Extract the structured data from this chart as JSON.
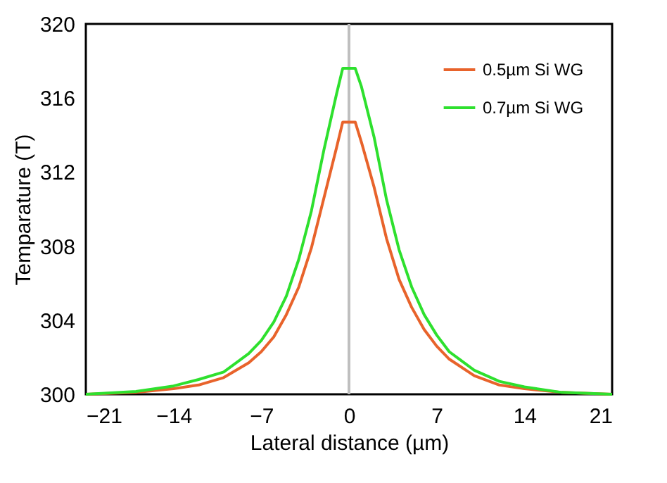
{
  "chart_data": {
    "type": "line",
    "xlabel": "Lateral distance (µm)",
    "ylabel": "Temparature (T)",
    "x": [
      -21,
      -17,
      -14,
      -12,
      -10,
      -8,
      -7,
      -6,
      -5,
      -4,
      -3,
      -2,
      -1,
      -0.5,
      0.5,
      1,
      2,
      3,
      4,
      5,
      6,
      7,
      8,
      10,
      12,
      14,
      17,
      21
    ],
    "series": [
      {
        "name": "0.5µm Si WG",
        "color": "#e8632b",
        "values": [
          300,
          300.1,
          300.3,
          300.5,
          300.9,
          301.7,
          302.3,
          303.1,
          304.3,
          305.8,
          307.9,
          310.6,
          313.3,
          314.7,
          314.7,
          313.6,
          311.2,
          308.4,
          306.2,
          304.7,
          303.5,
          302.6,
          301.9,
          301.0,
          300.5,
          300.3,
          300.1,
          300
        ]
      },
      {
        "name": "0.7µm Si WG",
        "color": "#2ee02e",
        "values": [
          300,
          300.15,
          300.45,
          300.8,
          301.2,
          302.2,
          302.9,
          303.9,
          305.3,
          307.3,
          309.9,
          313.2,
          316.2,
          317.6,
          317.6,
          316.6,
          313.9,
          310.5,
          307.8,
          305.8,
          304.3,
          303.2,
          302.3,
          301.3,
          300.7,
          300.4,
          300.1,
          300
        ]
      }
    ],
    "xlim": [
      -21,
      21
    ],
    "xticks": [
      -21,
      -14,
      -7,
      0,
      7,
      14,
      21
    ],
    "ylim": [
      300,
      320
    ],
    "yticks": [
      300,
      304,
      308,
      312,
      316,
      320
    ],
    "ref_lines": [
      {
        "axis": "x",
        "value": 0,
        "color": "#bfbfbf"
      }
    ],
    "legend": "top right",
    "grid": false,
    "marker": "none",
    "line_style": "solid"
  }
}
